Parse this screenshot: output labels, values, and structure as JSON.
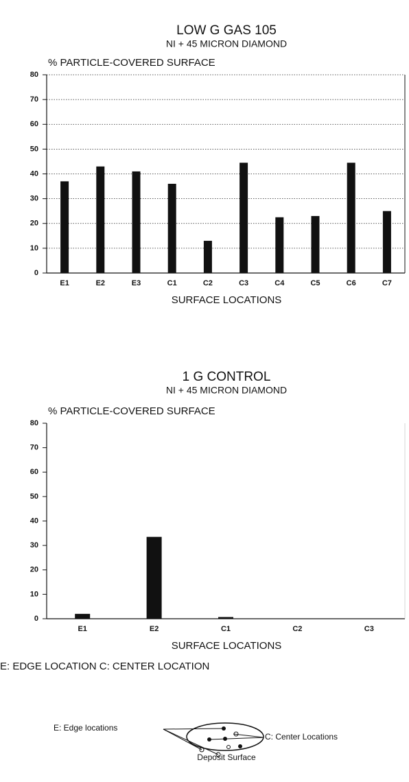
{
  "chart_data": [
    {
      "type": "bar",
      "title": "LOW G GAS 105",
      "subtitle": "NI + 45 MICRON DIAMOND",
      "y_label": "% PARTICLE-COVERED SURFACE",
      "x_label": "SURFACE LOCATIONS",
      "categories": [
        "E1",
        "E2",
        "E3",
        "C1",
        "C2",
        "C3",
        "C4",
        "C5",
        "C6",
        "C7"
      ],
      "values": [
        37,
        43,
        41,
        36,
        13,
        44.5,
        22.5,
        23,
        44.5,
        25
      ],
      "color": "#111111",
      "ylim": [
        0,
        80
      ],
      "yticks": [
        0,
        10,
        20,
        30,
        40,
        50,
        60,
        70,
        80
      ],
      "grid": true
    },
    {
      "type": "bar",
      "title": "1 G CONTROL",
      "subtitle": "NI + 45 MICRON DIAMOND",
      "y_label": "% PARTICLE-COVERED SURFACE",
      "x_label": "SURFACE LOCATIONS",
      "categories": [
        "E1",
        "E2",
        "C1",
        "C2",
        "C3"
      ],
      "values": [
        2,
        33.5,
        0.7,
        0,
        0
      ],
      "color": "#111111",
      "ylim": [
        0,
        80
      ],
      "yticks": [
        0,
        10,
        20,
        30,
        40,
        50,
        60,
        70,
        80
      ],
      "grid": false
    }
  ],
  "footnote": "E: EDGE LOCATION  C: CENTER LOCATION",
  "diagram": {
    "edge_label": "E: Edge locations",
    "center_label": "C: Center Locations",
    "caption": "Deposit Surface"
  }
}
